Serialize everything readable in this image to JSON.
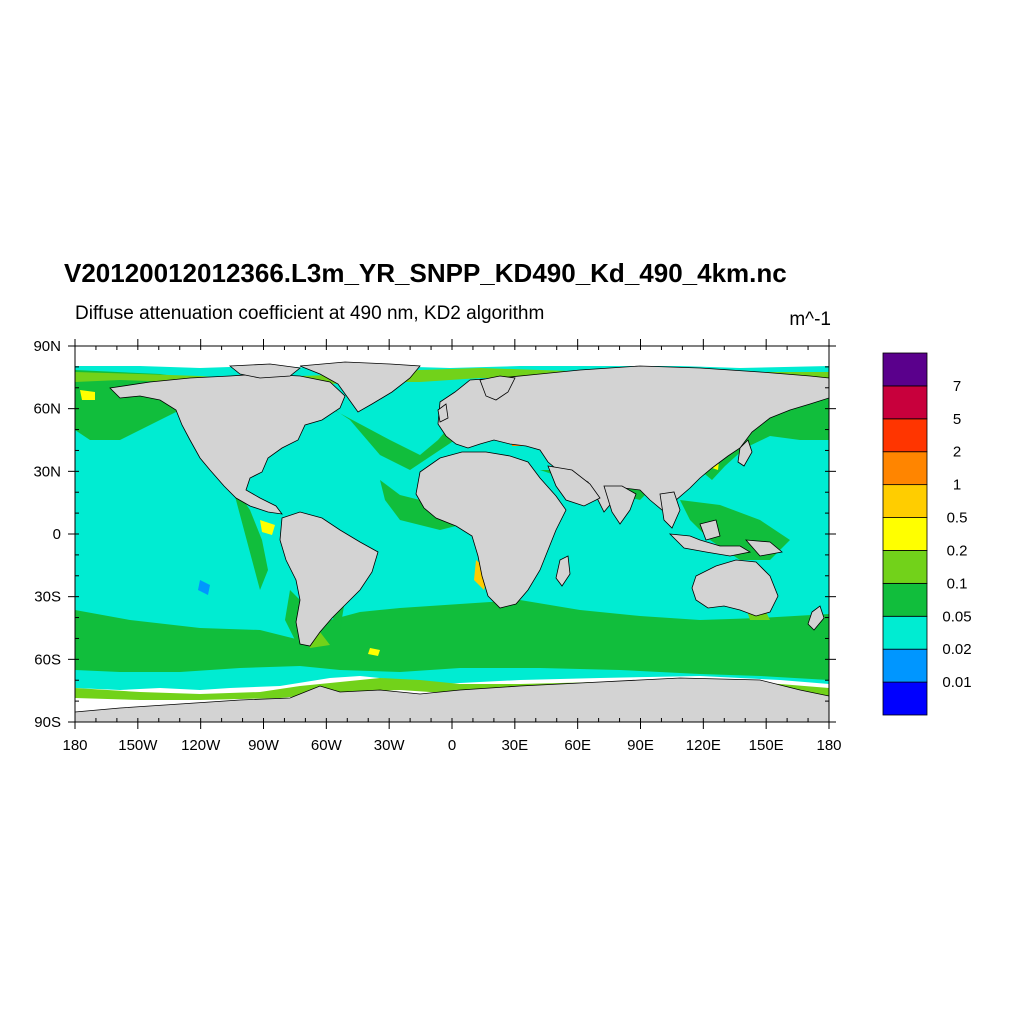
{
  "map": {
    "title": "V20120012012366.L3m_YR_SNPP_KD490_Kd_490_4km.nc",
    "subtitle": "Diffuse attenuation coefficient at 490 nm, KD2 algorithm",
    "units": "m^-1",
    "projection": "cylindrical-equidistant",
    "lon_range": [
      -180,
      180
    ],
    "lat_range": [
      -90,
      90
    ],
    "land_color": "#d3d3d3",
    "coastline_color": "#000000"
  },
  "axes": {
    "x_ticks": [
      {
        "value": -180,
        "label": "180"
      },
      {
        "value": -150,
        "label": "150W"
      },
      {
        "value": -120,
        "label": "120W"
      },
      {
        "value": -90,
        "label": "90W"
      },
      {
        "value": -60,
        "label": "60W"
      },
      {
        "value": -30,
        "label": "30W"
      },
      {
        "value": 0,
        "label": "0"
      },
      {
        "value": 30,
        "label": "30E"
      },
      {
        "value": 60,
        "label": "60E"
      },
      {
        "value": 90,
        "label": "90E"
      },
      {
        "value": 120,
        "label": "120E"
      },
      {
        "value": 150,
        "label": "150E"
      },
      {
        "value": 180,
        "label": "180"
      }
    ],
    "y_ticks": [
      {
        "value": 90,
        "label": "90N"
      },
      {
        "value": 60,
        "label": "60N"
      },
      {
        "value": 30,
        "label": "30N"
      },
      {
        "value": 0,
        "label": "0"
      },
      {
        "value": -30,
        "label": "30S"
      },
      {
        "value": -60,
        "label": "60S"
      },
      {
        "value": -90,
        "label": "90S"
      }
    ]
  },
  "colorbar": {
    "colors": [
      "#0000ff",
      "#0096ff",
      "#00ecd2",
      "#11be3c",
      "#72d21a",
      "#ffff00",
      "#ffcd00",
      "#ff8500",
      "#ff3500",
      "#c8003c",
      "#5a008c"
    ],
    "labels": [
      "0.01",
      "0.02",
      "0.05",
      "0.1",
      "0.2",
      "0.5",
      "1",
      "2",
      "5",
      "7"
    ]
  }
}
